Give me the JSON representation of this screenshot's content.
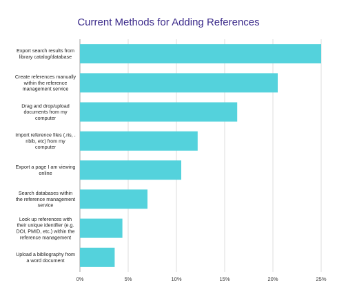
{
  "chart_data": {
    "type": "bar",
    "orientation": "horizontal",
    "title": "Current Methods for Adding References",
    "xlabel": "",
    "ylabel": "",
    "xlim": [
      0,
      25
    ],
    "x_ticks": [
      "0%",
      "5%",
      "10%",
      "15%",
      "20%",
      "25%"
    ],
    "grid": true,
    "legend": "none",
    "bar_color": "#54d2dc",
    "title_color": "#3b2a8a",
    "categories": [
      [
        "Export search results from",
        "library catalog/database"
      ],
      [
        "Create references manually",
        "within the reference",
        "management service"
      ],
      [
        "Drag and drop/upload",
        "documents from my",
        "computer"
      ],
      [
        "Import reference files (.ris, .",
        "nbib, etc) from my",
        "computer"
      ],
      [
        "Export a page I am viewing",
        "online"
      ],
      [
        "Search databases within",
        "the reference management",
        "service"
      ],
      [
        "Look up references with",
        "their unique identifier (e.g.",
        "DOI, PMID, etc.) within the",
        "reference management"
      ],
      [
        "Upload a bibliography from",
        "a word document"
      ]
    ],
    "values": [
      25.0,
      20.5,
      16.3,
      12.2,
      10.5,
      7.0,
      4.4,
      3.6
    ]
  }
}
